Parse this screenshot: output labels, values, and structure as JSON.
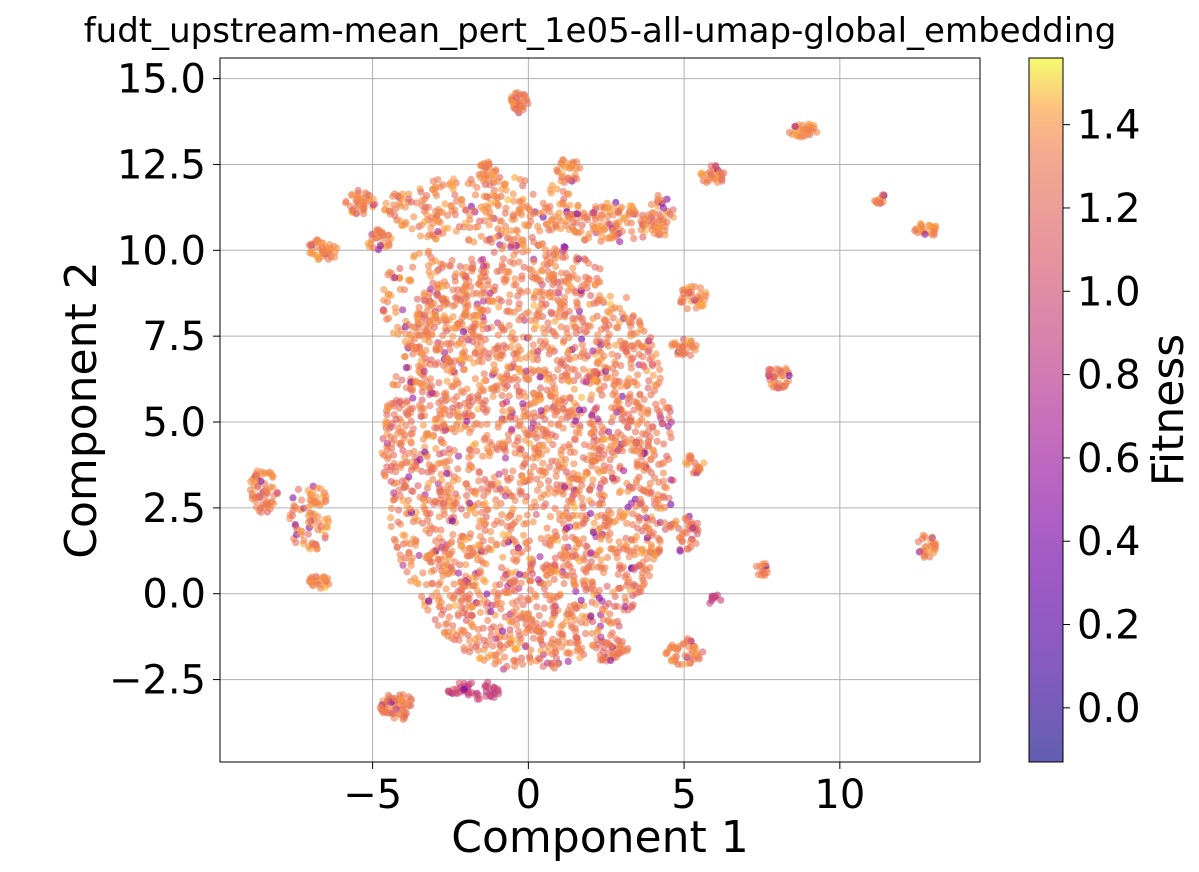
{
  "chart_data": {
    "type": "scatter",
    "title": "fudt_upstream-mean_pert_1e05-all-umap-global_embedding",
    "xlabel": "Component 1",
    "ylabel": "Component 2",
    "xlim": [
      -9.9,
      14.5
    ],
    "ylim": [
      -4.9,
      15.6
    ],
    "xticks": [
      -5,
      0,
      5,
      10
    ],
    "xtick_labels": [
      "−5",
      "0",
      "5",
      "10"
    ],
    "yticks": [
      -2.5,
      0.0,
      2.5,
      5.0,
      7.5,
      10.0,
      12.5,
      15.0
    ],
    "ytick_labels": [
      "−2.5",
      "0.0",
      "2.5",
      "5.0",
      "7.5",
      "10.0",
      "12.5",
      "15.0"
    ],
    "grid": true,
    "colormap": "plasma",
    "point_alpha": 0.6,
    "colorbar": {
      "label": "Fitness",
      "range": [
        -0.13,
        1.56
      ],
      "ticks": [
        0.0,
        0.2,
        0.4,
        0.6,
        0.8,
        1.0,
        1.2,
        1.4
      ],
      "tick_labels": [
        "0.0",
        "0.2",
        "0.4",
        "0.6",
        "0.8",
        "1.0",
        "1.2",
        "1.4"
      ]
    },
    "clusters": [
      {
        "cx": 0.0,
        "cy": 4.0,
        "rx": 4.7,
        "ry": 6.3,
        "n": 2600,
        "fitness_mean": 1.02
      },
      {
        "cx": -1.5,
        "cy": 11.2,
        "rx": 3.2,
        "ry": 1.0,
        "n": 260,
        "fitness_mean": 1.05
      },
      {
        "cx": -3.0,
        "cy": 8.5,
        "rx": 1.8,
        "ry": 1.5,
        "n": 160,
        "fitness_mean": 1.05
      },
      {
        "cx": 2.6,
        "cy": 10.8,
        "rx": 1.5,
        "ry": 0.6,
        "n": 110,
        "fitness_mean": 1.05
      },
      {
        "cx": -8.5,
        "cy": 3.0,
        "rx": 0.45,
        "ry": 0.7,
        "n": 60,
        "fitness_mean": 1.05
      },
      {
        "cx": -7.0,
        "cy": 2.2,
        "rx": 0.7,
        "ry": 1.0,
        "n": 80,
        "fitness_mean": 1.05
      },
      {
        "cx": -6.7,
        "cy": 0.35,
        "rx": 0.35,
        "ry": 0.2,
        "n": 25,
        "fitness_mean": 1.05
      },
      {
        "cx": -6.6,
        "cy": 10.0,
        "rx": 0.5,
        "ry": 0.35,
        "n": 40,
        "fitness_mean": 1.05
      },
      {
        "cx": -5.4,
        "cy": 11.4,
        "rx": 0.5,
        "ry": 0.35,
        "n": 40,
        "fitness_mean": 1.05
      },
      {
        "cx": -4.8,
        "cy": 10.3,
        "rx": 0.4,
        "ry": 0.3,
        "n": 30,
        "fitness_mean": 1.05
      },
      {
        "cx": -4.2,
        "cy": -3.3,
        "rx": 0.6,
        "ry": 0.4,
        "n": 60,
        "fitness_mean": 1.02
      },
      {
        "cx": -1.7,
        "cy": -2.8,
        "rx": 0.9,
        "ry": 0.3,
        "n": 50,
        "fitness_mean": 0.7
      },
      {
        "cx": -0.3,
        "cy": 14.3,
        "rx": 0.3,
        "ry": 0.3,
        "n": 35,
        "fitness_mean": 1.0
      },
      {
        "cx": -1.3,
        "cy": 12.3,
        "rx": 0.35,
        "ry": 0.3,
        "n": 25,
        "fitness_mean": 1.05
      },
      {
        "cx": 1.3,
        "cy": 12.3,
        "rx": 0.4,
        "ry": 0.4,
        "n": 30,
        "fitness_mean": 1.05
      },
      {
        "cx": 4.2,
        "cy": 11.0,
        "rx": 0.5,
        "ry": 0.6,
        "n": 45,
        "fitness_mean": 1.05
      },
      {
        "cx": 5.9,
        "cy": 12.2,
        "rx": 0.4,
        "ry": 0.3,
        "n": 30,
        "fitness_mean": 1.05
      },
      {
        "cx": 5.3,
        "cy": 8.6,
        "rx": 0.45,
        "ry": 0.4,
        "n": 35,
        "fitness_mean": 1.05
      },
      {
        "cx": 5.0,
        "cy": 7.2,
        "rx": 0.4,
        "ry": 0.3,
        "n": 30,
        "fitness_mean": 1.05
      },
      {
        "cx": 8.0,
        "cy": 6.3,
        "rx": 0.4,
        "ry": 0.35,
        "n": 35,
        "fitness_mean": 1.0
      },
      {
        "cx": 8.8,
        "cy": 13.5,
        "rx": 0.5,
        "ry": 0.2,
        "n": 30,
        "fitness_mean": 1.05
      },
      {
        "cx": 11.3,
        "cy": 11.5,
        "rx": 0.2,
        "ry": 0.15,
        "n": 12,
        "fitness_mean": 1.05
      },
      {
        "cx": 12.8,
        "cy": 10.6,
        "rx": 0.4,
        "ry": 0.2,
        "n": 25,
        "fitness_mean": 1.1
      },
      {
        "cx": 12.8,
        "cy": 1.4,
        "rx": 0.35,
        "ry": 0.35,
        "n": 25,
        "fitness_mean": 1.05
      },
      {
        "cx": 7.5,
        "cy": 0.7,
        "rx": 0.25,
        "ry": 0.2,
        "n": 15,
        "fitness_mean": 1.05
      },
      {
        "cx": 6.0,
        "cy": -0.2,
        "rx": 0.2,
        "ry": 0.2,
        "n": 10,
        "fitness_mean": 0.7
      },
      {
        "cx": 5.0,
        "cy": -1.7,
        "rx": 0.6,
        "ry": 0.4,
        "n": 45,
        "fitness_mean": 1.0
      },
      {
        "cx": 2.6,
        "cy": -1.6,
        "rx": 0.6,
        "ry": 0.4,
        "n": 45,
        "fitness_mean": 1.0
      },
      {
        "cx": 5.0,
        "cy": 1.8,
        "rx": 0.5,
        "ry": 0.6,
        "n": 40,
        "fitness_mean": 1.0
      },
      {
        "cx": 5.3,
        "cy": 3.8,
        "rx": 0.35,
        "ry": 0.3,
        "n": 20,
        "fitness_mean": 1.05
      }
    ]
  }
}
